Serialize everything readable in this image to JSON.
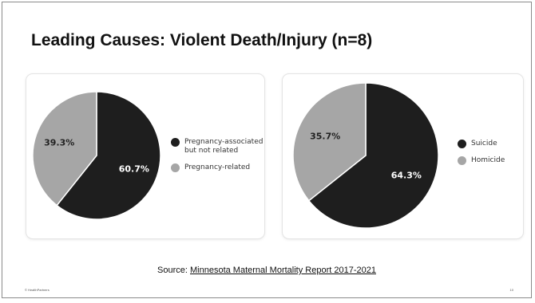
{
  "slide": {
    "title": "Leading Causes: Violent Death/Injury (n=8)",
    "source_prefix": "Source: ",
    "source_link": "Minnesota Maternal Mortality Report 2017-2021",
    "footer_left": "© HealthPartners",
    "page_number": "10"
  },
  "chart_data": [
    {
      "type": "pie",
      "title": "",
      "slices": [
        {
          "label": "Pregnancy-associated but not related",
          "value": 60.7,
          "display": "60.7%",
          "color": "#1e1e1e"
        },
        {
          "label": "Pregnancy-related",
          "value": 39.3,
          "display": "39.3%",
          "color": "#a6a6a6"
        }
      ],
      "legend_position": "right"
    },
    {
      "type": "pie",
      "title": "",
      "slices": [
        {
          "label": "Suicide",
          "value": 64.3,
          "display": "64.3%",
          "color": "#1e1e1e"
        },
        {
          "label": "Homicide",
          "value": 35.7,
          "display": "35.7%",
          "color": "#a6a6a6"
        }
      ],
      "legend_position": "right"
    }
  ]
}
